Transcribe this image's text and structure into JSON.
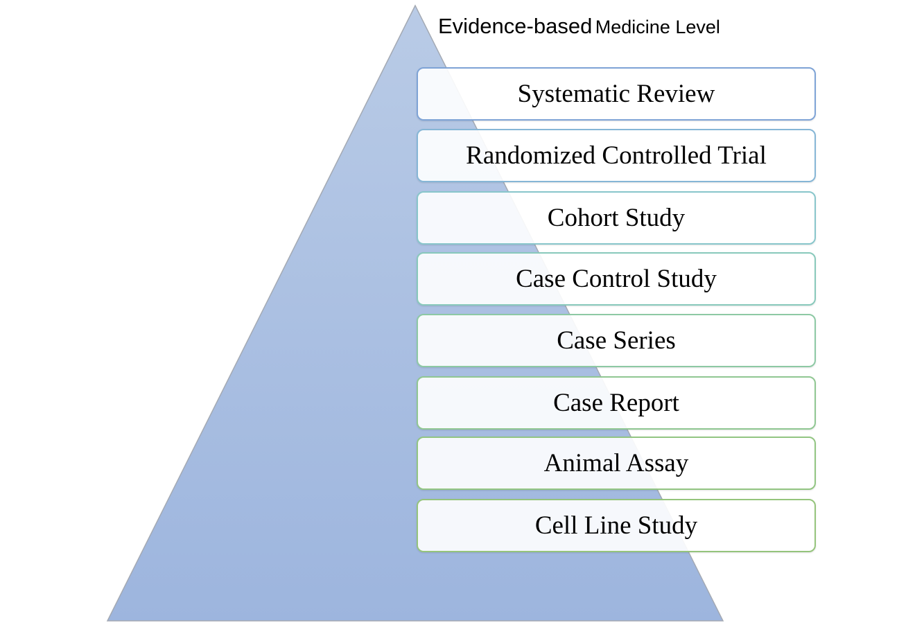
{
  "title": {
    "part1": "Evidence-based",
    "part2": "Medicine Level"
  },
  "levels": [
    "Systematic Review",
    "Randomized Controlled Trial",
    "Cohort Study",
    "Case Control Study",
    "Case Series",
    "Case Report",
    "Animal Assay",
    "Cell Line Study"
  ],
  "colors": {
    "pyramid_top": "#b9cbe6",
    "pyramid_bottom": "#9db5de",
    "pyramid_edge": "#a3a9b3",
    "border_top": "#7aa4d8",
    "border_mid": "#86cbc0",
    "border_bottom": "#90c47a"
  }
}
